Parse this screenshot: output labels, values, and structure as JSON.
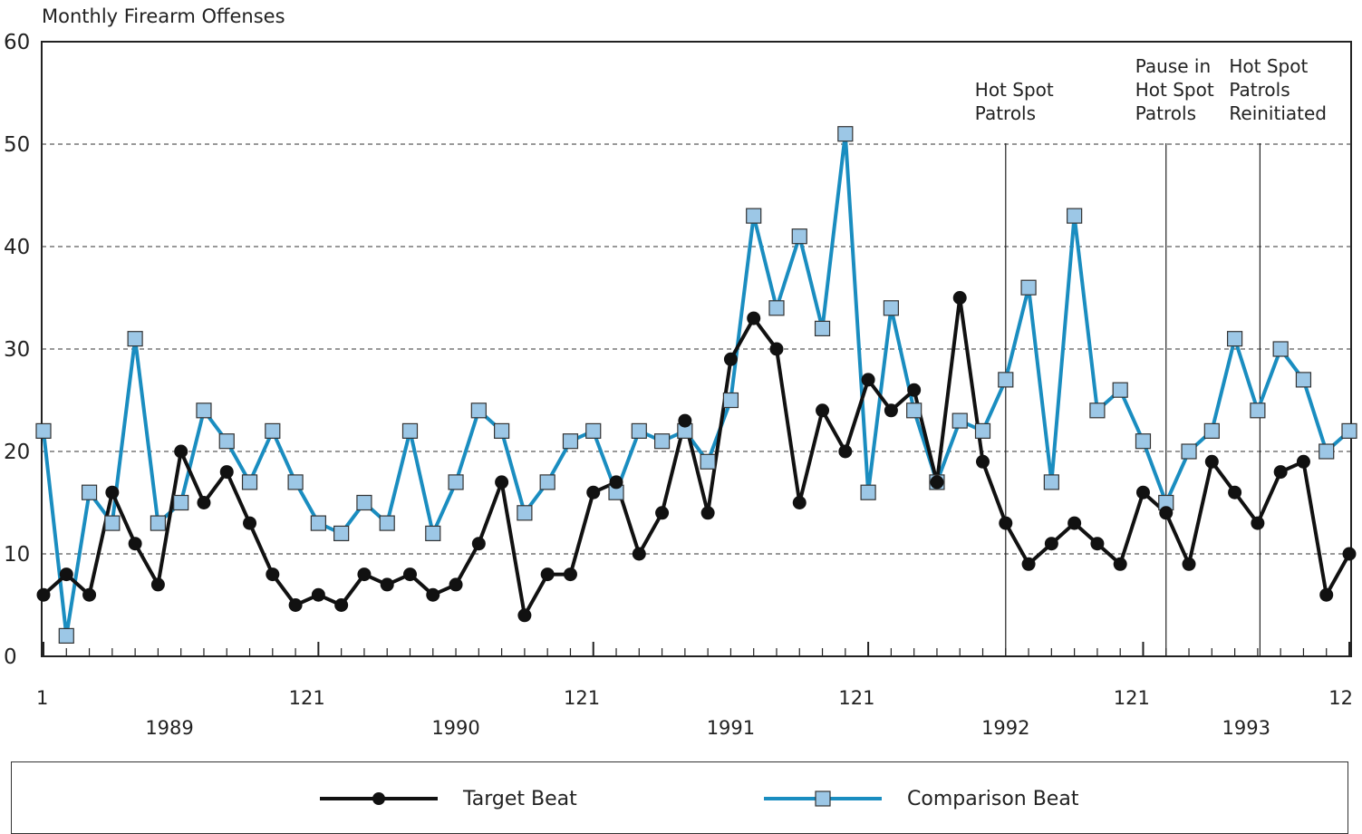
{
  "chart_data": {
    "type": "line",
    "ylabel": "Monthly Firearm Offenses",
    "ylim": [
      0,
      60
    ],
    "yticks": [
      0,
      10,
      20,
      30,
      40,
      50,
      60
    ],
    "grid": "horizontal dashed",
    "x_tick_labels": [
      "1",
      "121",
      "121",
      "121",
      "121",
      "12"
    ],
    "years": [
      "1989",
      "1990",
      "1991",
      "1992",
      "1993"
    ],
    "colors": {
      "target": "#111111",
      "comparison": "#1a8dc0",
      "comparison_marker_fill": "#9cc7e6"
    },
    "series": [
      {
        "name": "Target Beat",
        "marker": "circle",
        "values": [
          6,
          8,
          6,
          16,
          11,
          7,
          20,
          15,
          18,
          13,
          8,
          5,
          6,
          5,
          8,
          7,
          8,
          6,
          7,
          11,
          17,
          4,
          8,
          8,
          16,
          17,
          10,
          14,
          23,
          14,
          29,
          33,
          30,
          15,
          24,
          20,
          27,
          24,
          26,
          17,
          35,
          19,
          13,
          9,
          11,
          13,
          11,
          9,
          16,
          14,
          9,
          19,
          16,
          13,
          18,
          19,
          6,
          10
        ]
      },
      {
        "name": "Comparison Beat",
        "marker": "square",
        "values": [
          22,
          2,
          16,
          13,
          31,
          13,
          15,
          24,
          21,
          17,
          22,
          17,
          13,
          12,
          15,
          13,
          22,
          12,
          17,
          24,
          22,
          14,
          17,
          21,
          22,
          16,
          22,
          21,
          22,
          19,
          25,
          43,
          34,
          41,
          32,
          51,
          16,
          34,
          24,
          17,
          23,
          22,
          27,
          36,
          17,
          43,
          24,
          26,
          21,
          15,
          20,
          22,
          31,
          24,
          30,
          27,
          20,
          22
        ]
      }
    ],
    "annotations": [
      {
        "lines": [
          "Hot Spot",
          "Patrols"
        ],
        "at_index": 42.0
      },
      {
        "lines": [
          "Pause in",
          "Hot Spot",
          "Patrols"
        ],
        "at_index": 49.0
      },
      {
        "lines": [
          "Hot Spot",
          "Patrols",
          "Reinitiated"
        ],
        "at_index": 53.1
      }
    ]
  }
}
